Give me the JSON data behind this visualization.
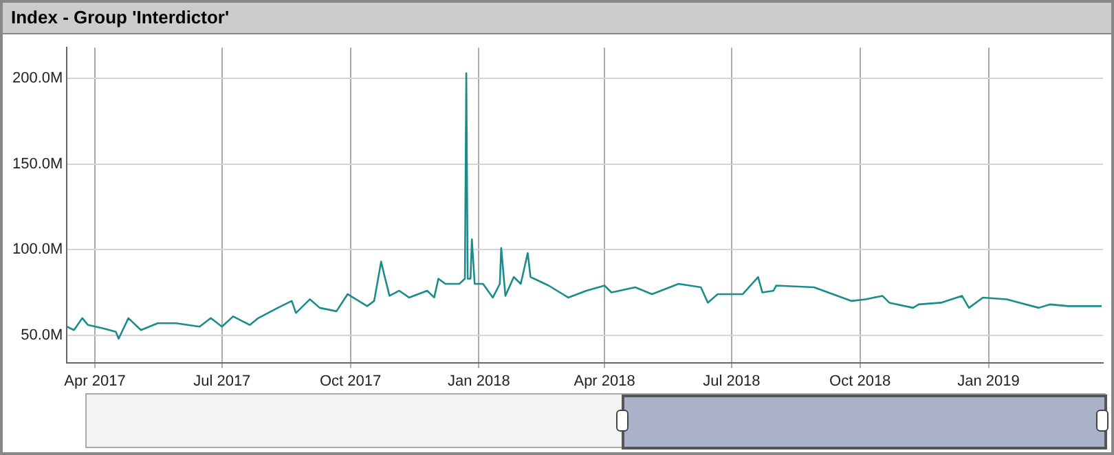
{
  "chart_data": {
    "type": "line",
    "title": "Index - Group 'Interdictor'",
    "x": [
      "2017-03-12",
      "2017-03-17",
      "2017-03-23",
      "2017-03-27",
      "2017-04-07",
      "2017-04-16",
      "2017-04-18",
      "2017-04-25",
      "2017-05-04",
      "2017-05-16",
      "2017-05-29",
      "2017-06-15",
      "2017-06-23",
      "2017-07-01",
      "2017-07-09",
      "2017-07-21",
      "2017-07-27",
      "2017-08-03",
      "2017-08-10",
      "2017-08-20",
      "2017-08-23",
      "2017-09-02",
      "2017-09-09",
      "2017-09-21",
      "2017-09-29",
      "2017-10-13",
      "2017-10-18",
      "2017-10-23",
      "2017-10-25",
      "2017-10-29",
      "2017-11-05",
      "2017-11-12",
      "2017-11-25",
      "2017-11-30",
      "2017-12-03",
      "2017-12-08",
      "2017-12-18",
      "2017-12-22",
      "2017-12-23",
      "2017-12-24",
      "2017-12-26",
      "2017-12-27",
      "2017-12-29",
      "2018-01-04",
      "2018-01-11",
      "2018-01-16",
      "2018-01-17",
      "2018-01-20",
      "2018-01-26",
      "2018-01-31",
      "2018-02-05",
      "2018-02-07",
      "2018-02-20",
      "2018-03-06",
      "2018-03-19",
      "2018-04-01",
      "2018-04-06",
      "2018-04-23",
      "2018-05-05",
      "2018-05-24",
      "2018-06-09",
      "2018-06-14",
      "2018-06-21",
      "2018-07-09",
      "2018-07-20",
      "2018-07-23",
      "2018-07-31",
      "2018-08-02",
      "2018-08-29",
      "2018-09-25",
      "2018-10-05",
      "2018-10-17",
      "2018-10-22",
      "2018-11-08",
      "2018-11-12",
      "2018-11-28",
      "2018-12-13",
      "2018-12-18",
      "2018-12-28",
      "2019-01-14",
      "2019-02-06",
      "2019-02-14",
      "2019-02-27",
      "2019-03-23"
    ],
    "series": [
      {
        "color": "#1a8c8c",
        "values": [
          55,
          53,
          60,
          56,
          54,
          52,
          48,
          60,
          53,
          57,
          57,
          55,
          60,
          55,
          61,
          56,
          60,
          63,
          66,
          70,
          63,
          71,
          66,
          64,
          74,
          67,
          70,
          93,
          86,
          73,
          76,
          72,
          76,
          72,
          83,
          80,
          80,
          83,
          203,
          83,
          83,
          106,
          80,
          80,
          72,
          80,
          101,
          73,
          84,
          80,
          98,
          84,
          79,
          72,
          76,
          79,
          75,
          78,
          74,
          80,
          78,
          69,
          74,
          74,
          84,
          75,
          76,
          79,
          78,
          70,
          71,
          73,
          69,
          66,
          68,
          69,
          73,
          66,
          72,
          71,
          66,
          68,
          67,
          67
        ]
      }
    ],
    "xlim": [
      "2017-03-12",
      "2019-03-24"
    ],
    "xticks": [
      {
        "value": "2017-04-01",
        "label": "Apr 2017"
      },
      {
        "value": "2017-07-01",
        "label": "Jul 2017"
      },
      {
        "value": "2017-10-01",
        "label": "Oct 2017"
      },
      {
        "value": "2018-01-01",
        "label": "Jan 2018"
      },
      {
        "value": "2018-04-01",
        "label": "Apr 2018"
      },
      {
        "value": "2018-07-01",
        "label": "Jul 2018"
      },
      {
        "value": "2018-10-01",
        "label": "Oct 2018"
      },
      {
        "value": "2019-01-01",
        "label": "Jan 2019"
      }
    ],
    "ylim": [
      34,
      218
    ],
    "yticks": [
      {
        "value": 50,
        "label": "50.0M"
      },
      {
        "value": 100,
        "label": "100.0M"
      },
      {
        "value": 150,
        "label": "150.0M"
      },
      {
        "value": 200,
        "label": "200.0M"
      }
    ],
    "grid": true
  }
}
